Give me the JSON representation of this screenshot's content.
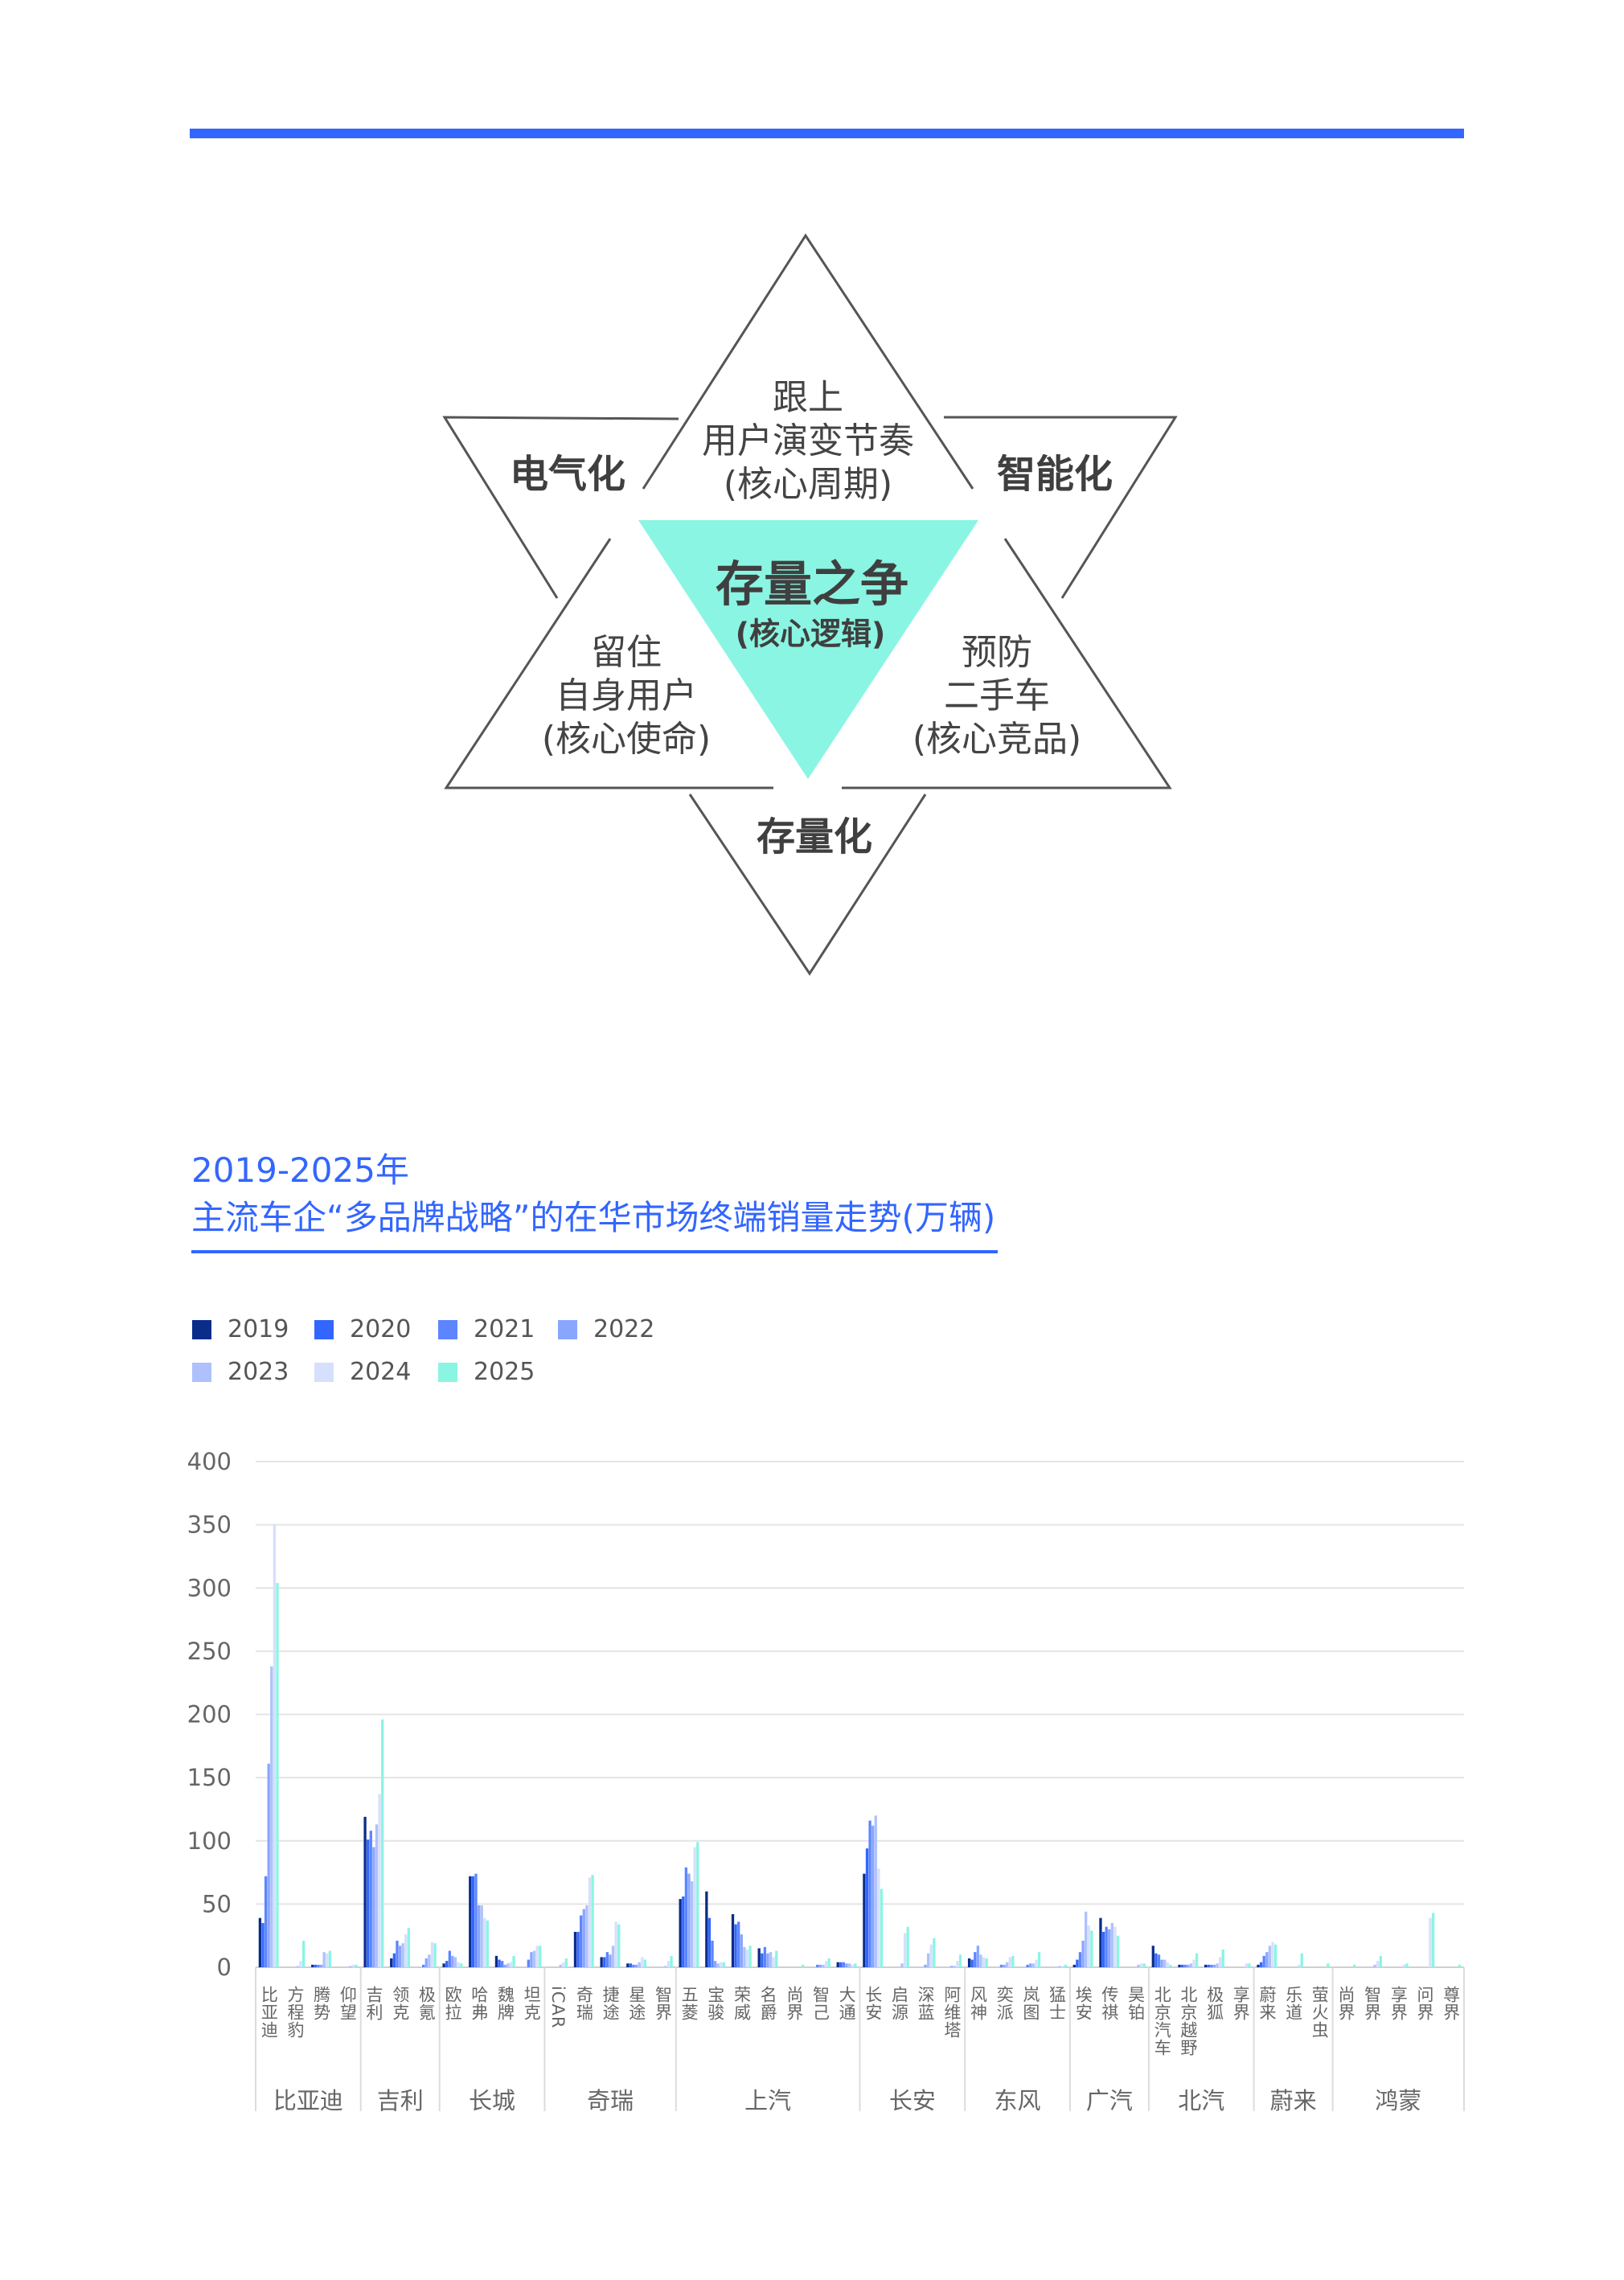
{
  "diagram": {
    "top": [
      "跟上",
      "用户演变节奏",
      "(核心周期)"
    ],
    "left": [
      "留住",
      "自身用户",
      "(核心使命)"
    ],
    "right": [
      "预防",
      "二手车",
      "(核心竞品)"
    ],
    "center_title": "存量之争",
    "center_sub": "(核心逻辑)",
    "corner_left": "电气化",
    "corner_right": "智能化",
    "corner_bottom": "存量化",
    "center_color": "#8af5e2",
    "line_color": "#555555"
  },
  "chart_title": {
    "line1": "2019-2025年",
    "line2": "主流车企“多品牌战略”的在华市场终端销量走势(万辆)"
  },
  "chart_data": {
    "type": "bar",
    "title": "2019-2025年 主流车企“多品牌战略”的在华市场终端销量走势(万辆)",
    "ylabel": "",
    "xlabel": "",
    "ylim": [
      0,
      400
    ],
    "yticks": [
      "0",
      "50",
      "100",
      "150",
      "200",
      "250",
      "300",
      "350",
      "400"
    ],
    "grid": true,
    "legend_position": "top-left",
    "groups": [
      {
        "label": "比亚迪",
        "brands": [
          "比亚迪",
          "方程豹",
          "腾势",
          "仰望"
        ]
      },
      {
        "label": "吉利",
        "brands": [
          "吉利",
          "领克",
          "极氪"
        ]
      },
      {
        "label": "长城",
        "brands": [
          "欧拉",
          "哈弗",
          "魏牌",
          "坦克"
        ]
      },
      {
        "label": "奇瑞",
        "brands": [
          "iCAR",
          "奇瑞",
          "捷途",
          "星途",
          "智界"
        ]
      },
      {
        "label": "上汽",
        "brands": [
          "五菱",
          "宝骏",
          "荣威",
          "名爵",
          "尚界",
          "智己",
          "大通"
        ]
      },
      {
        "label": "长安",
        "brands": [
          "长安",
          "启源",
          "深蓝",
          "阿维塔"
        ]
      },
      {
        "label": "东风",
        "brands": [
          "风神",
          "奕派",
          "岚图",
          "猛士"
        ]
      },
      {
        "label": "广汽",
        "brands": [
          "埃安",
          "传祺",
          "昊铂"
        ]
      },
      {
        "label": "北汽",
        "brands": [
          "北京汽车",
          "北京越野",
          "极狐",
          "享界"
        ]
      },
      {
        "label": "蔚来",
        "brands": [
          "蔚来",
          "乐道",
          "萤火虫"
        ]
      },
      {
        "label": "鸿蒙",
        "brands": [
          "尚界",
          "智界",
          "享界",
          "问界",
          "尊界"
        ]
      }
    ],
    "series": [
      {
        "name": "2019",
        "color": "#0a2d8a",
        "values": [
          39,
          0,
          2,
          0,
          119,
          7,
          0,
          3,
          72,
          9,
          0,
          0,
          28,
          8,
          3,
          0,
          54,
          60,
          42,
          15,
          0,
          0,
          4,
          74,
          0,
          0,
          0,
          7,
          0,
          0,
          0,
          2,
          39,
          0,
          17,
          2,
          2,
          0,
          2,
          0,
          0,
          0,
          0,
          0,
          0,
          0
        ]
      },
      {
        "name": "2020",
        "color": "#3366ff",
        "values": [
          35,
          0,
          2,
          0,
          101,
          11,
          0,
          5,
          72,
          6,
          0,
          0,
          28,
          8,
          3,
          0,
          56,
          39,
          34,
          11,
          0,
          0,
          4,
          94,
          0,
          0,
          0,
          6,
          0,
          0,
          0,
          6,
          28,
          0,
          11,
          2,
          2,
          0,
          4,
          0,
          0,
          0,
          0,
          0,
          0,
          0
        ]
      },
      {
        "name": "2021",
        "color": "#5c85ff",
        "values": [
          72,
          0,
          2,
          0,
          108,
          21,
          2,
          13,
          74,
          5,
          6,
          0,
          41,
          12,
          2,
          0,
          79,
          21,
          36,
          16,
          0,
          2,
          4,
          116,
          0,
          0,
          0,
          12,
          2,
          2,
          0,
          12,
          32,
          0,
          10,
          2,
          2,
          0,
          9,
          0,
          0,
          0,
          0,
          0,
          0,
          0
        ]
      },
      {
        "name": "2022",
        "color": "#89a6ff",
        "values": [
          161,
          0,
          2,
          0,
          95,
          17,
          7,
          9,
          49,
          2,
          12,
          0,
          46,
          10,
          2,
          0,
          74,
          5,
          26,
          11,
          0,
          2,
          3,
          112,
          0,
          2,
          1,
          17,
          2,
          3,
          0,
          21,
          30,
          0,
          6,
          2,
          2,
          0,
          12,
          0,
          0,
          0,
          0,
          0,
          0,
          0
        ]
      },
      {
        "name": "2023",
        "color": "#aec1fc",
        "values": [
          238,
          1,
          12,
          1,
          113,
          19,
          10,
          8,
          49,
          3,
          13,
          2,
          49,
          17,
          4,
          1,
          68,
          3,
          16,
          12,
          0,
          2,
          3,
          120,
          3,
          11,
          1,
          10,
          4,
          3,
          1,
          44,
          35,
          2,
          6,
          3,
          3,
          0,
          17,
          0,
          0,
          0,
          2,
          0,
          0,
          0
        ]
      },
      {
        "name": "2024",
        "color": "#d6e0fd",
        "values": [
          350,
          5,
          11,
          2,
          137,
          26,
          20,
          4,
          39,
          4,
          17,
          4,
          71,
          36,
          8,
          5,
          95,
          4,
          14,
          8,
          0,
          5,
          2,
          78,
          27,
          18,
          5,
          8,
          8,
          6,
          1,
          33,
          32,
          3,
          4,
          6,
          8,
          3,
          20,
          2,
          0,
          0,
          5,
          2,
          39,
          0
        ]
      },
      {
        "name": "2025",
        "color": "#8af5e2",
        "values": [
          304,
          21,
          13,
          2,
          196,
          31,
          19,
          3,
          37,
          9,
          17,
          7,
          73,
          34,
          6,
          9,
          99,
          4,
          17,
          13,
          2,
          7,
          3,
          62,
          32,
          23,
          10,
          7,
          9,
          12,
          2,
          29,
          25,
          3,
          2,
          11,
          14,
          3,
          18,
          11,
          3,
          2,
          9,
          3,
          43,
          2
        ]
      }
    ]
  },
  "accent_color": "#3366ff"
}
